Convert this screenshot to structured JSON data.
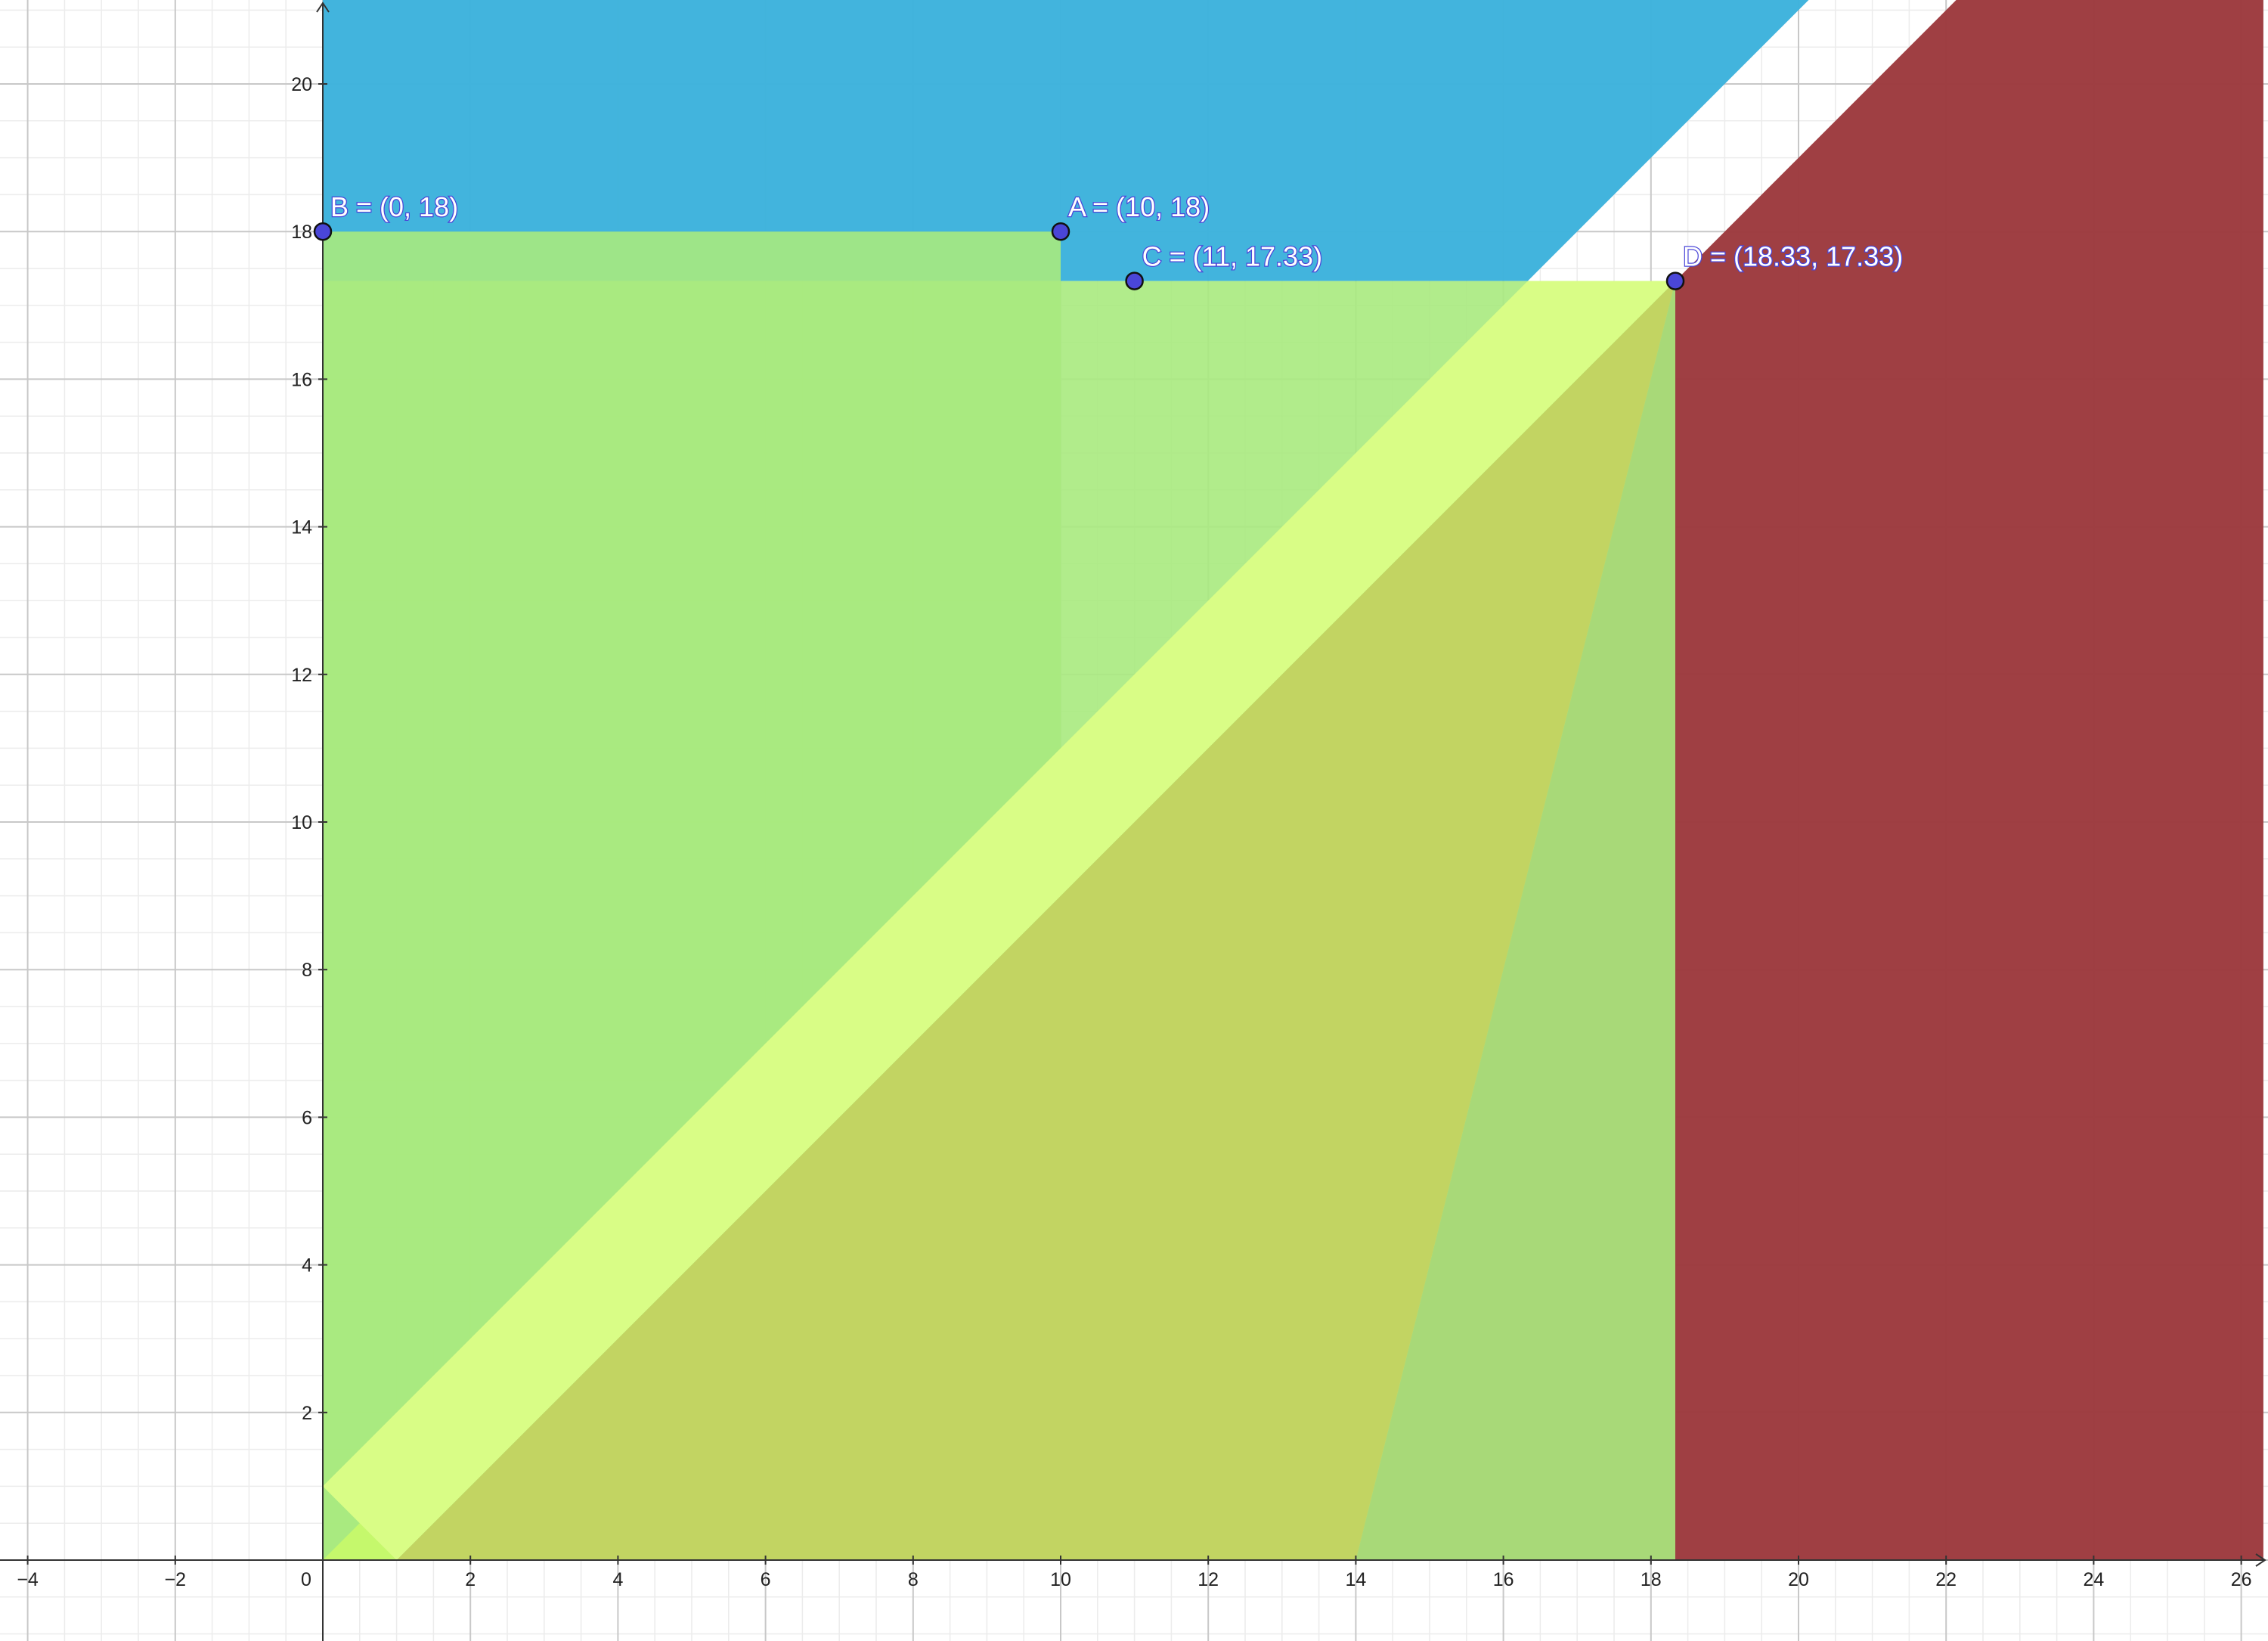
{
  "chart_data": {
    "type": "area",
    "title": "",
    "xlabel": "",
    "ylabel": "",
    "xlim": [
      -4.4,
      26.3
    ],
    "ylim": [
      -1.1,
      21.2
    ],
    "grid": true,
    "x_ticks": [
      -4,
      -2,
      0,
      2,
      4,
      6,
      8,
      10,
      12,
      14,
      16,
      18,
      20,
      22,
      24,
      26
    ],
    "y_ticks": [
      2,
      4,
      6,
      8,
      10,
      12,
      14,
      16,
      18,
      20
    ],
    "x_tick_labels": [
      "−4",
      "−2",
      "0",
      "2",
      "4",
      "6",
      "8",
      "10",
      "12",
      "14",
      "16",
      "18",
      "20",
      "22",
      "24",
      "26"
    ],
    "y_tick_labels": [
      "2",
      "4",
      "6",
      "8",
      "10",
      "12",
      "14",
      "16",
      "18",
      "20"
    ],
    "regions": [
      {
        "id": "blue-band",
        "color": "#3cb2dc",
        "opacity": 0.97,
        "polygon": [
          [
            0,
            17.33
          ],
          [
            16.33,
            17.33
          ],
          [
            20.2,
            21.2
          ],
          [
            0,
            21.2
          ]
        ]
      },
      {
        "id": "red-region",
        "color": "#9c393d",
        "opacity": 0.97,
        "polygon": [
          [
            14,
            0
          ],
          [
            18.33,
            17.33
          ],
          [
            22.2,
            21.2
          ],
          [
            26.3,
            21.2
          ],
          [
            26.3,
            0
          ]
        ]
      },
      {
        "id": "x-le-10-region",
        "color": "#a8ea7e",
        "opacity": 0.9,
        "polygon": [
          [
            0,
            0
          ],
          [
            10,
            0
          ],
          [
            10,
            18
          ],
          [
            0,
            18
          ]
        ]
      },
      {
        "id": "y-le-17.33-region",
        "color": "#a8ea7e",
        "opacity": 0.9,
        "polygon": [
          [
            0,
            0
          ],
          [
            18.33,
            0
          ],
          [
            18.33,
            17.33
          ],
          [
            0,
            17.33
          ]
        ]
      },
      {
        "id": "left-strip",
        "color": "#c8fa69",
        "opacity": 0.9,
        "polygon": [
          [
            0,
            0
          ],
          [
            1,
            0
          ],
          [
            1,
            1
          ]
        ]
      },
      {
        "id": "olive-region",
        "color": "#c2d462",
        "opacity": 1.0,
        "polygon": [
          [
            1,
            0
          ],
          [
            14,
            0
          ],
          [
            18.33,
            17.33
          ],
          [
            18.33,
            17.33
          ]
        ]
      }
    ],
    "overlays": [
      {
        "id": "light-band",
        "color": "#d9fd86",
        "opacity": 1.0,
        "polygon": [
          [
            0,
            1
          ],
          [
            1,
            0
          ],
          [
            18.33,
            17.33
          ],
          [
            16.33,
            17.33
          ],
          [
            0,
            1
          ]
        ]
      }
    ],
    "points": [
      {
        "name": "B",
        "x": 0,
        "y": 18,
        "label": "B = (0, 18)"
      },
      {
        "name": "A",
        "x": 10,
        "y": 18,
        "label": "A = (10, 18)"
      },
      {
        "name": "C",
        "x": 11,
        "y": 17.33,
        "label": "C = (11, 17.33)"
      },
      {
        "name": "D",
        "x": 18.33,
        "y": 17.33,
        "label": "D = (18.33, 17.33)"
      }
    ],
    "point_color": "#4a46d8"
  }
}
